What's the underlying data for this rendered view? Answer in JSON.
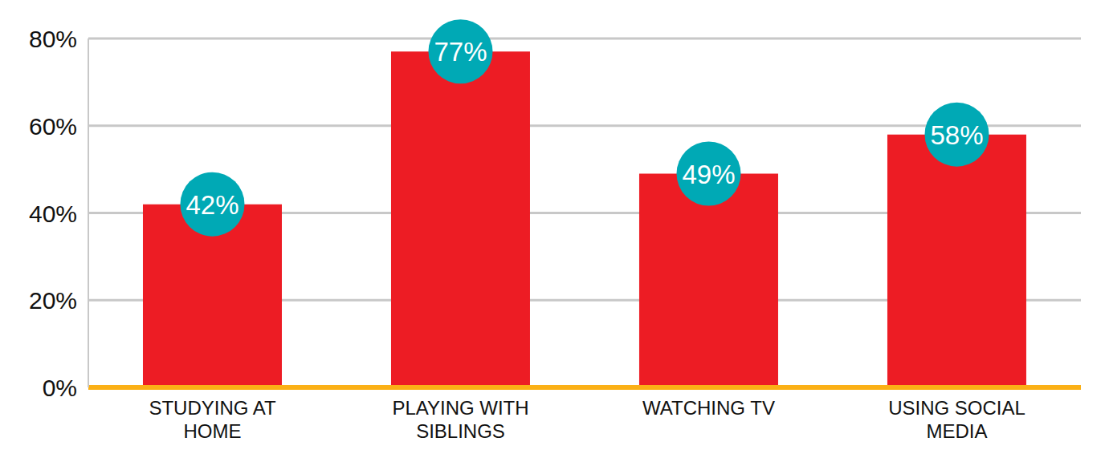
{
  "chart_data": {
    "type": "bar",
    "categories": [
      "STUDYING AT HOME",
      "PLAYING WITH SIBLINGS",
      "WATCHING TV",
      "USING SOCIAL MEDIA"
    ],
    "values": [
      42,
      77,
      49,
      58
    ],
    "value_labels": [
      "42%",
      "77%",
      "49%",
      "58%"
    ],
    "data_labels": true,
    "color": "#ed1c24",
    "ylim": [
      0,
      80
    ],
    "yticks": [
      {
        "value": 0,
        "label": "0%"
      },
      {
        "value": 20,
        "label": "20%"
      },
      {
        "value": 40,
        "label": "40%"
      },
      {
        "value": 60,
        "label": "60%"
      },
      {
        "value": 80,
        "label": "80%"
      }
    ],
    "grid": true
  }
}
